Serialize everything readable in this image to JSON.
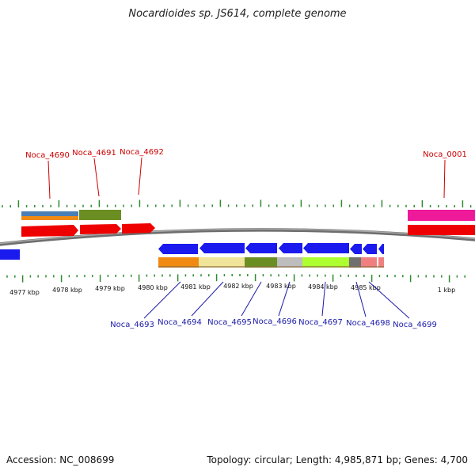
{
  "title": "Nocardioides sp. JS614, complete genome",
  "footer": {
    "accession": "Accession: NC_008699",
    "topology": "Topology: circular; Length: 4,985,871 bp; Genes: 4,700"
  },
  "colors": {
    "backbone": "#8a8a8a",
    "tick": "#2e8b2e",
    "label_top": "#cc0000",
    "label_bottom": "#1a1aaa"
  },
  "kbp_labels": [
    "4977 kbp",
    "4978 kbp",
    "4979 kbp",
    "4980 kbp",
    "4981 kbp",
    "4982 kbp",
    "4983 kbp",
    "4984 kbp",
    "4985 kbp",
    "1 kbp"
  ],
  "genes_top": [
    {
      "name": "Noca_4690"
    },
    {
      "name": "Noca_4691"
    },
    {
      "name": "Noca_4692"
    },
    {
      "name": "Noca_0001"
    }
  ],
  "genes_bottom": [
    {
      "name": "Noca_4693"
    },
    {
      "name": "Noca_4694"
    },
    {
      "name": "Noca_4695"
    },
    {
      "name": "Noca_4696"
    },
    {
      "name": "Noca_4697"
    },
    {
      "name": "Noca_4698"
    },
    {
      "name": "Noca_4699"
    }
  ]
}
